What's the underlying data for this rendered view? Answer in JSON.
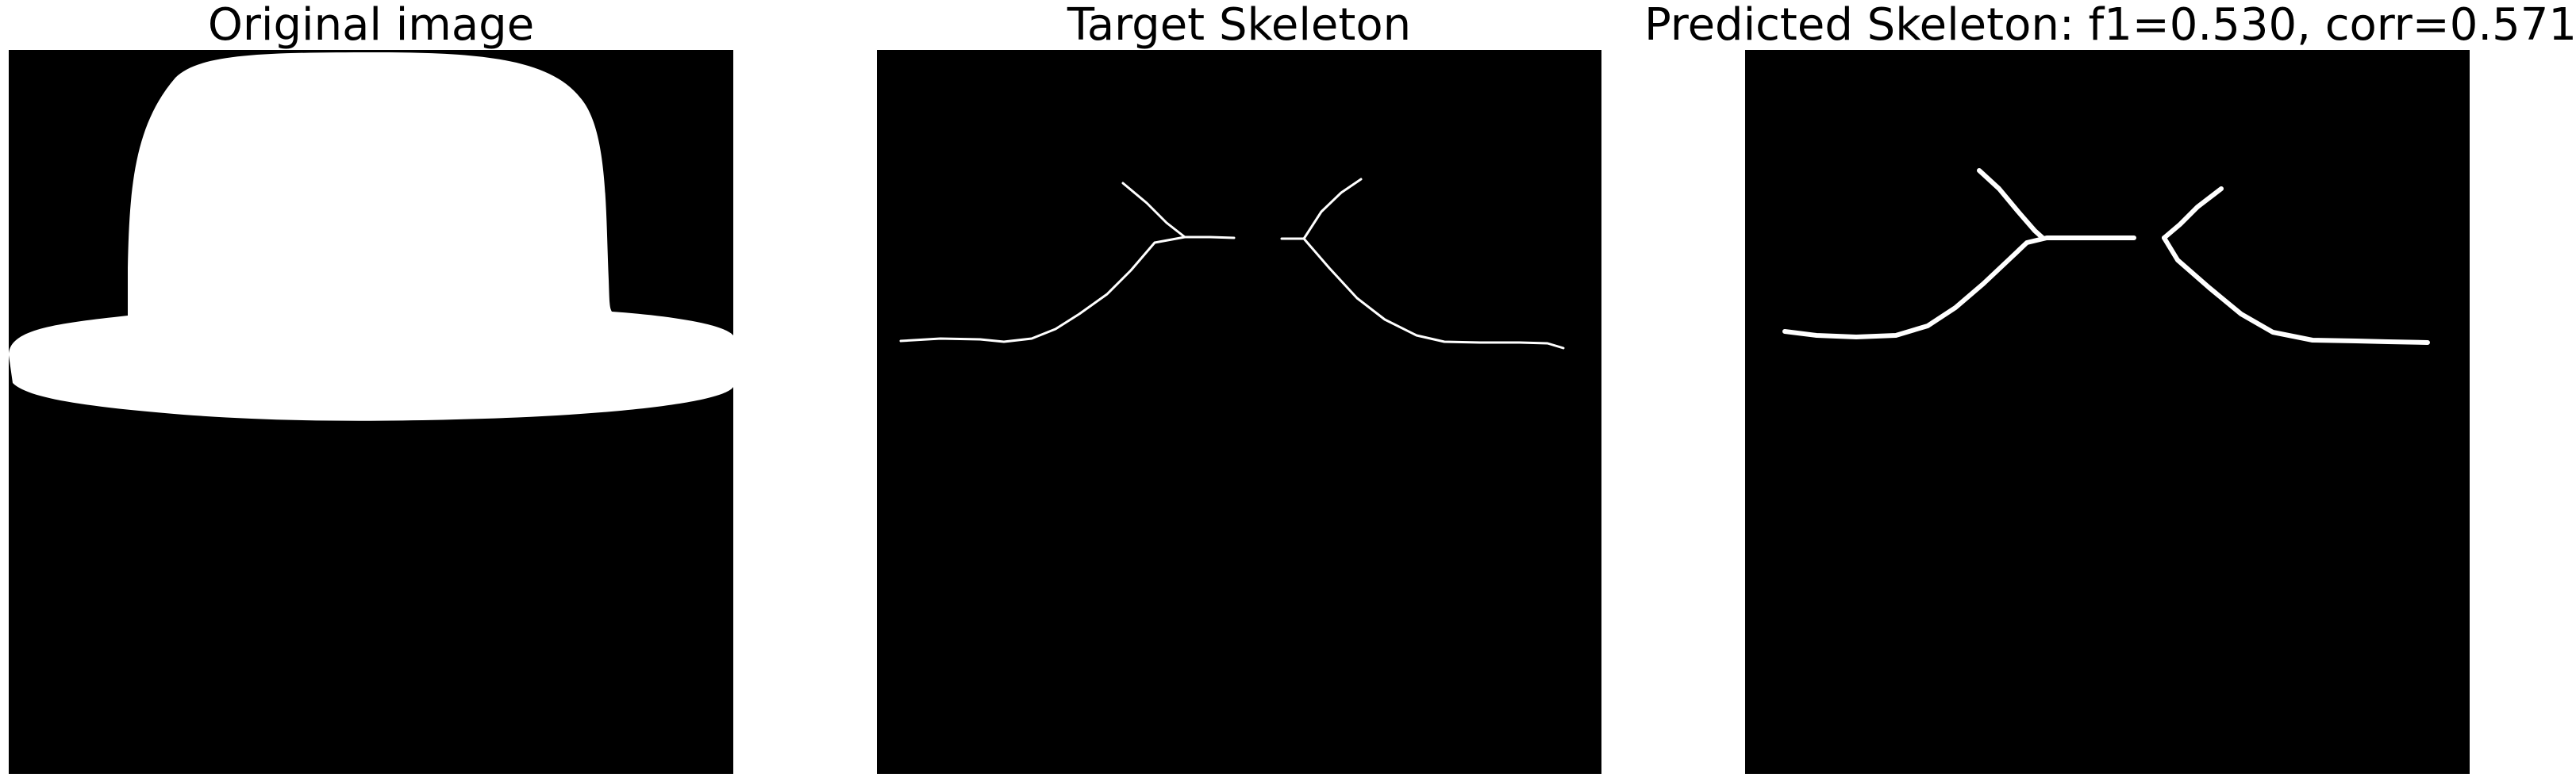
{
  "panels": [
    {
      "title": "Original image",
      "content": "hat silhouette mask"
    },
    {
      "title": "Target Skeleton",
      "content": "target skeleton lines"
    },
    {
      "title": "Predicted Skeleton: f1=0.530, corr=0.571",
      "content": "predicted skeleton lines"
    }
  ],
  "colors": {
    "background": "#000000",
    "foreground": "#ffffff",
    "page": "#ffffff"
  }
}
